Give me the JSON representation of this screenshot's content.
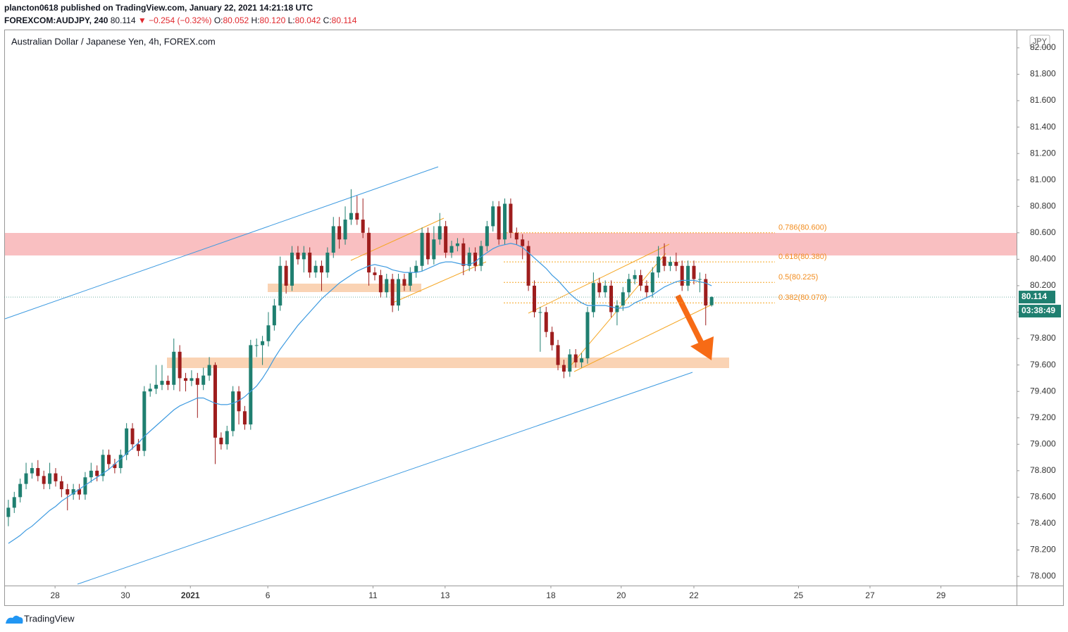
{
  "header": {
    "author_line": "plancton0618 published on TradingView.com, January 22, 2021 14:21:18 UTC",
    "symbol": "FOREXCOM:AUDJPY, 240",
    "price": "80.114",
    "change": "▼ −0.254 (−0.32%)",
    "ohlc": [
      {
        "label": "O:",
        "value": "80.052"
      },
      {
        "label": "H:",
        "value": "80.120"
      },
      {
        "label": "L:",
        "value": "80.042"
      },
      {
        "label": "C:",
        "value": "80.114"
      }
    ]
  },
  "footer": {
    "brand": "TradingView"
  },
  "chart_data": {
    "type": "candlestick",
    "title": "Australian Dollar / Japanese Yen, 4h, FOREX.com",
    "currency": "JPY",
    "up_color": "#1f7f70",
    "down_color": "#9e1d1d",
    "ma_color": "#3d9ae0",
    "ylim": [
      77.931,
      82.138
    ],
    "xlim": [
      -0.7,
      170.6
    ],
    "yticks": [
      {
        "value": 78.0,
        "label": "78.000"
      },
      {
        "value": 78.2,
        "label": "78.200"
      },
      {
        "value": 78.4,
        "label": "78.400"
      },
      {
        "value": 78.6,
        "label": "78.600"
      },
      {
        "value": 78.8,
        "label": "78.800"
      },
      {
        "value": 79.0,
        "label": "79.000"
      },
      {
        "value": 79.2,
        "label": "79.200"
      },
      {
        "value": 79.4,
        "label": "79.400"
      },
      {
        "value": 79.6,
        "label": "79.600"
      },
      {
        "value": 79.8,
        "label": "79.800"
      },
      {
        "value": 80.0,
        "label": "80.000"
      },
      {
        "value": 80.2,
        "label": "80.200"
      },
      {
        "value": 80.4,
        "label": "80.400"
      },
      {
        "value": 80.6,
        "label": "80.600"
      },
      {
        "value": 80.8,
        "label": "80.800"
      },
      {
        "value": 81.0,
        "label": "81.000"
      },
      {
        "value": 81.2,
        "label": "81.200"
      },
      {
        "value": 81.4,
        "label": "81.400"
      },
      {
        "value": 81.6,
        "label": "81.600"
      },
      {
        "value": 81.8,
        "label": "81.800"
      },
      {
        "value": 82.0,
        "label": "82.000"
      }
    ],
    "xticks": [
      {
        "value": 7.9,
        "label": "28"
      },
      {
        "value": 19.8,
        "label": "30"
      },
      {
        "value": 30.8,
        "label": "2021"
      },
      {
        "value": 43.9,
        "label": "6"
      },
      {
        "value": 61.7,
        "label": "11"
      },
      {
        "value": 73.9,
        "label": "13"
      },
      {
        "value": 91.8,
        "label": "18"
      },
      {
        "value": 103.7,
        "label": "20"
      },
      {
        "value": 116.0,
        "label": "22"
      },
      {
        "value": 133.7,
        "label": "25"
      },
      {
        "value": 145.8,
        "label": "27"
      },
      {
        "value": 157.8,
        "label": "29"
      }
    ],
    "open": [
      78.45,
      78.52,
      78.6,
      78.7,
      78.78,
      78.82,
      78.76,
      78.7,
      78.78,
      78.72,
      78.66,
      78.62,
      78.66,
      78.62,
      78.75,
      78.8,
      78.76,
      78.92,
      78.85,
      78.82,
      78.92,
      79.12,
      79.0,
      78.95,
      79.4,
      79.42,
      79.45,
      79.48,
      79.45,
      79.7,
      79.5,
      79.48,
      79.5,
      79.45,
      79.52,
      79.6,
      79.05,
      79.0,
      79.1,
      79.4,
      79.25,
      79.15,
      79.75,
      79.75,
      79.78,
      79.9,
      80.05,
      80.35,
      80.2,
      80.45,
      80.4,
      80.45,
      80.3,
      80.35,
      80.3,
      80.45,
      80.65,
      80.55,
      80.7,
      80.75,
      80.7,
      80.6,
      80.3,
      80.28,
      80.15,
      80.25,
      80.05,
      80.25,
      80.2,
      80.3,
      80.35,
      80.6,
      80.4,
      80.55,
      80.65,
      80.45,
      80.5,
      80.52,
      80.35,
      80.45,
      80.35,
      80.5,
      80.65,
      80.8,
      80.55,
      80.82,
      80.6,
      80.55,
      80.5,
      80.2,
      80.0,
      80.0,
      79.85,
      79.75,
      79.6,
      79.55,
      79.68,
      79.62,
      79.65,
      80.0,
      80.22,
      80.15,
      80.2,
      80.0,
      80.05,
      80.15,
      80.25,
      80.28,
      80.2,
      80.15,
      80.3,
      80.42,
      80.35,
      80.38,
      80.35,
      80.2,
      80.35,
      80.25,
      80.25,
      80.052
    ],
    "high": [
      78.58,
      78.64,
      78.74,
      78.86,
      78.86,
      78.88,
      78.8,
      78.86,
      78.82,
      78.76,
      78.7,
      78.7,
      78.7,
      78.79,
      78.86,
      78.84,
      78.96,
      78.96,
      78.89,
      78.96,
      79.16,
      79.16,
      79.04,
      79.44,
      79.46,
      79.6,
      79.6,
      79.52,
      79.8,
      79.75,
      79.54,
      79.56,
      79.54,
      79.58,
      79.66,
      79.62,
      79.09,
      79.14,
      79.44,
      79.44,
      79.29,
      79.79,
      79.8,
      79.82,
      80.0,
      80.1,
      80.42,
      80.39,
      80.5,
      80.5,
      80.5,
      80.49,
      80.39,
      80.39,
      80.49,
      80.72,
      80.72,
      80.8,
      80.93,
      80.88,
      80.86,
      80.64,
      80.34,
      80.32,
      80.29,
      80.29,
      80.29,
      80.29,
      80.34,
      80.39,
      80.64,
      80.64,
      80.65,
      80.75,
      80.69,
      80.54,
      80.56,
      80.56,
      80.49,
      80.49,
      80.54,
      80.69,
      80.84,
      80.84,
      80.86,
      80.86,
      80.64,
      80.59,
      80.54,
      80.24,
      80.04,
      80.04,
      79.89,
      79.79,
      79.64,
      79.72,
      79.72,
      79.69,
      80.04,
      80.3,
      80.26,
      80.24,
      80.24,
      80.09,
      80.19,
      80.29,
      80.32,
      80.32,
      80.24,
      80.34,
      80.5,
      80.52,
      80.42,
      80.45,
      80.39,
      80.39,
      80.39,
      80.3,
      80.29,
      80.12
    ],
    "low": [
      78.38,
      78.48,
      78.56,
      78.66,
      78.74,
      78.72,
      78.66,
      78.66,
      78.68,
      78.6,
      78.5,
      78.58,
      78.58,
      78.58,
      78.71,
      78.72,
      78.72,
      78.81,
      78.78,
      78.78,
      78.88,
      78.96,
      78.91,
      78.91,
      79.36,
      79.38,
      79.41,
      79.41,
      79.41,
      79.4,
      79.4,
      79.44,
      79.2,
      79.41,
      79.48,
      78.85,
      78.96,
      78.96,
      79.06,
      79.15,
      79.11,
      79.11,
      79.66,
      79.6,
      79.74,
      79.86,
      80.01,
      80.14,
      80.16,
      80.36,
      80.3,
      80.26,
      80.26,
      80.16,
      80.26,
      80.41,
      80.48,
      80.51,
      80.66,
      80.66,
      80.56,
      80.2,
      80.24,
      80.11,
      80.11,
      80.0,
      80.01,
      80.16,
      80.16,
      80.26,
      80.31,
      80.36,
      80.36,
      80.51,
      80.41,
      80.41,
      80.46,
      80.28,
      80.31,
      80.31,
      80.31,
      80.46,
      80.61,
      80.51,
      80.51,
      80.56,
      80.51,
      80.4,
      80.16,
      79.96,
      79.7,
      79.81,
      79.71,
      79.56,
      79.5,
      79.51,
      79.58,
      79.58,
      79.61,
      79.96,
      80.11,
      80.11,
      79.96,
      79.9,
      80.01,
      80.11,
      80.21,
      80.16,
      80.11,
      80.11,
      80.26,
      80.31,
      80.31,
      80.31,
      80.16,
      80.16,
      80.21,
      80.15,
      79.9,
      80.042
    ],
    "close": [
      78.52,
      78.6,
      78.7,
      78.78,
      78.82,
      78.76,
      78.7,
      78.78,
      78.72,
      78.66,
      78.62,
      78.66,
      78.62,
      78.75,
      78.8,
      78.76,
      78.92,
      78.85,
      78.82,
      78.92,
      79.12,
      79.0,
      78.95,
      79.4,
      79.42,
      79.45,
      79.48,
      79.45,
      79.7,
      79.5,
      79.48,
      79.5,
      79.45,
      79.52,
      79.6,
      79.05,
      79.0,
      79.1,
      79.4,
      79.25,
      79.15,
      79.75,
      79.75,
      79.78,
      79.9,
      80.05,
      80.35,
      80.2,
      80.45,
      80.4,
      80.45,
      80.3,
      80.35,
      80.3,
      80.45,
      80.65,
      80.55,
      80.7,
      80.75,
      80.7,
      80.6,
      80.3,
      80.28,
      80.15,
      80.25,
      80.05,
      80.25,
      80.2,
      80.3,
      80.35,
      80.6,
      80.4,
      80.55,
      80.65,
      80.45,
      80.5,
      80.52,
      80.35,
      80.45,
      80.35,
      80.5,
      80.65,
      80.8,
      80.55,
      80.82,
      80.6,
      80.55,
      80.5,
      80.2,
      80.0,
      80.0,
      79.85,
      79.75,
      79.6,
      79.55,
      79.68,
      79.62,
      79.65,
      80.0,
      80.22,
      80.15,
      80.2,
      80.0,
      80.05,
      80.15,
      80.25,
      80.28,
      80.2,
      80.15,
      80.3,
      80.42,
      80.35,
      80.38,
      80.35,
      80.2,
      80.35,
      80.25,
      80.25,
      80.05,
      80.114
    ],
    "ma": [
      78.25,
      78.28,
      78.31,
      78.35,
      78.38,
      78.42,
      78.46,
      78.5,
      78.53,
      78.57,
      78.6,
      78.63,
      78.66,
      78.69,
      78.72,
      78.75,
      78.78,
      78.81,
      78.85,
      78.89,
      78.93,
      78.97,
      79.01,
      79.06,
      79.1,
      79.14,
      79.18,
      79.22,
      79.26,
      79.29,
      79.31,
      79.33,
      79.35,
      79.35,
      79.33,
      79.31,
      79.3,
      79.3,
      79.31,
      79.33,
      79.36,
      79.4,
      79.44,
      79.5,
      79.57,
      79.65,
      79.72,
      79.78,
      79.84,
      79.9,
      79.95,
      80.0,
      80.05,
      80.1,
      80.14,
      80.18,
      80.22,
      80.25,
      80.28,
      80.31,
      80.33,
      80.35,
      80.36,
      80.35,
      80.34,
      80.32,
      80.31,
      80.3,
      80.3,
      80.3,
      80.31,
      80.33,
      80.35,
      80.37,
      80.38,
      80.38,
      80.37,
      80.36,
      80.36,
      80.38,
      80.42,
      80.45,
      80.48,
      80.5,
      80.51,
      80.52,
      80.51,
      80.49,
      80.45,
      80.41,
      80.37,
      80.33,
      80.28,
      80.24,
      80.19,
      80.14,
      80.1,
      80.07,
      80.05,
      80.05,
      80.05,
      80.05,
      80.04,
      80.03,
      80.03,
      80.04,
      80.07,
      80.09,
      80.11,
      80.13,
      80.16,
      80.19,
      80.21,
      80.23,
      80.24,
      80.24,
      80.24,
      80.23,
      80.22,
      80.2
    ],
    "fib_levels": [
      {
        "value": 80.6,
        "label": "0.786(80.600)"
      },
      {
        "value": 80.38,
        "label": "0.618(80.380)"
      },
      {
        "value": 80.225,
        "label": "0.5(80.225)"
      },
      {
        "value": 80.07,
        "label": "0.382(80.070)"
      }
    ],
    "last_price": 80.114,
    "countdown": "03:38:49"
  }
}
